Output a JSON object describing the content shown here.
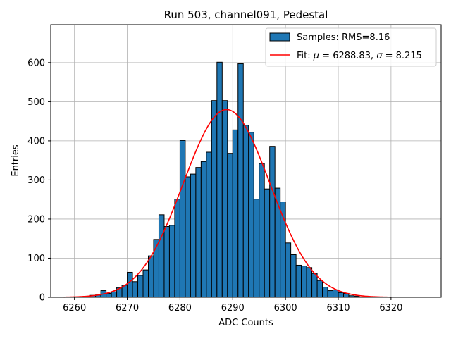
{
  "chart_data": {
    "type": "bar",
    "title": "Run 503, channel091, Pedestal",
    "xlabel": "ADC Counts",
    "ylabel": "Entries",
    "xlim": [
      6255.5,
      6329.5
    ],
    "ylim": [
      0,
      697
    ],
    "xticks": [
      6260,
      6270,
      6280,
      6290,
      6300,
      6310,
      6320
    ],
    "yticks": [
      0,
      100,
      200,
      300,
      400,
      500,
      600
    ],
    "grid": true,
    "legend_position": "top-right",
    "series": [
      {
        "name": "Samples: RMS=8.16",
        "kind": "histogram",
        "bin_width": 1,
        "color": "#1f77b4",
        "edgecolor": "#000000",
        "bins": [
          6263,
          6264,
          6265,
          6266,
          6267,
          6268,
          6269,
          6270,
          6271,
          6272,
          6273,
          6274,
          6275,
          6276,
          6277,
          6278,
          6279,
          6280,
          6281,
          6282,
          6283,
          6284,
          6285,
          6286,
          6287,
          6288,
          6289,
          6290,
          6291,
          6292,
          6293,
          6294,
          6295,
          6296,
          6297,
          6298,
          6299,
          6300,
          6301,
          6302,
          6303,
          6304,
          6305,
          6306,
          6307,
          6308,
          6309,
          6310,
          6311,
          6312,
          6313,
          6314
        ],
        "values": [
          5,
          6,
          17,
          10,
          14,
          25,
          31,
          64,
          40,
          56,
          70,
          106,
          148,
          211,
          181,
          184,
          251,
          401,
          308,
          315,
          332,
          347,
          371,
          503,
          601,
          503,
          368,
          428,
          597,
          440,
          422,
          251,
          342,
          277,
          386,
          279,
          244,
          139,
          109,
          82,
          80,
          76,
          61,
          43,
          26,
          17,
          19,
          12,
          10,
          4,
          3,
          1
        ]
      },
      {
        "name": "Fit: μ = 6288.83, σ = 8.215",
        "kind": "gaussian-fit",
        "color": "#ff0000",
        "mu": 6288.83,
        "sigma": 8.215,
        "amplitude": 480,
        "x_range": [
          6258,
          6320
        ]
      }
    ]
  },
  "legend": {
    "samples_label": "Samples: RMS=8.16",
    "fit_prefix": "Fit: ",
    "fit_mu_symbol": "μ",
    "fit_mu_value": " = 6288.83, ",
    "fit_sigma_symbol": "σ",
    "fit_sigma_value": " = 8.215"
  }
}
